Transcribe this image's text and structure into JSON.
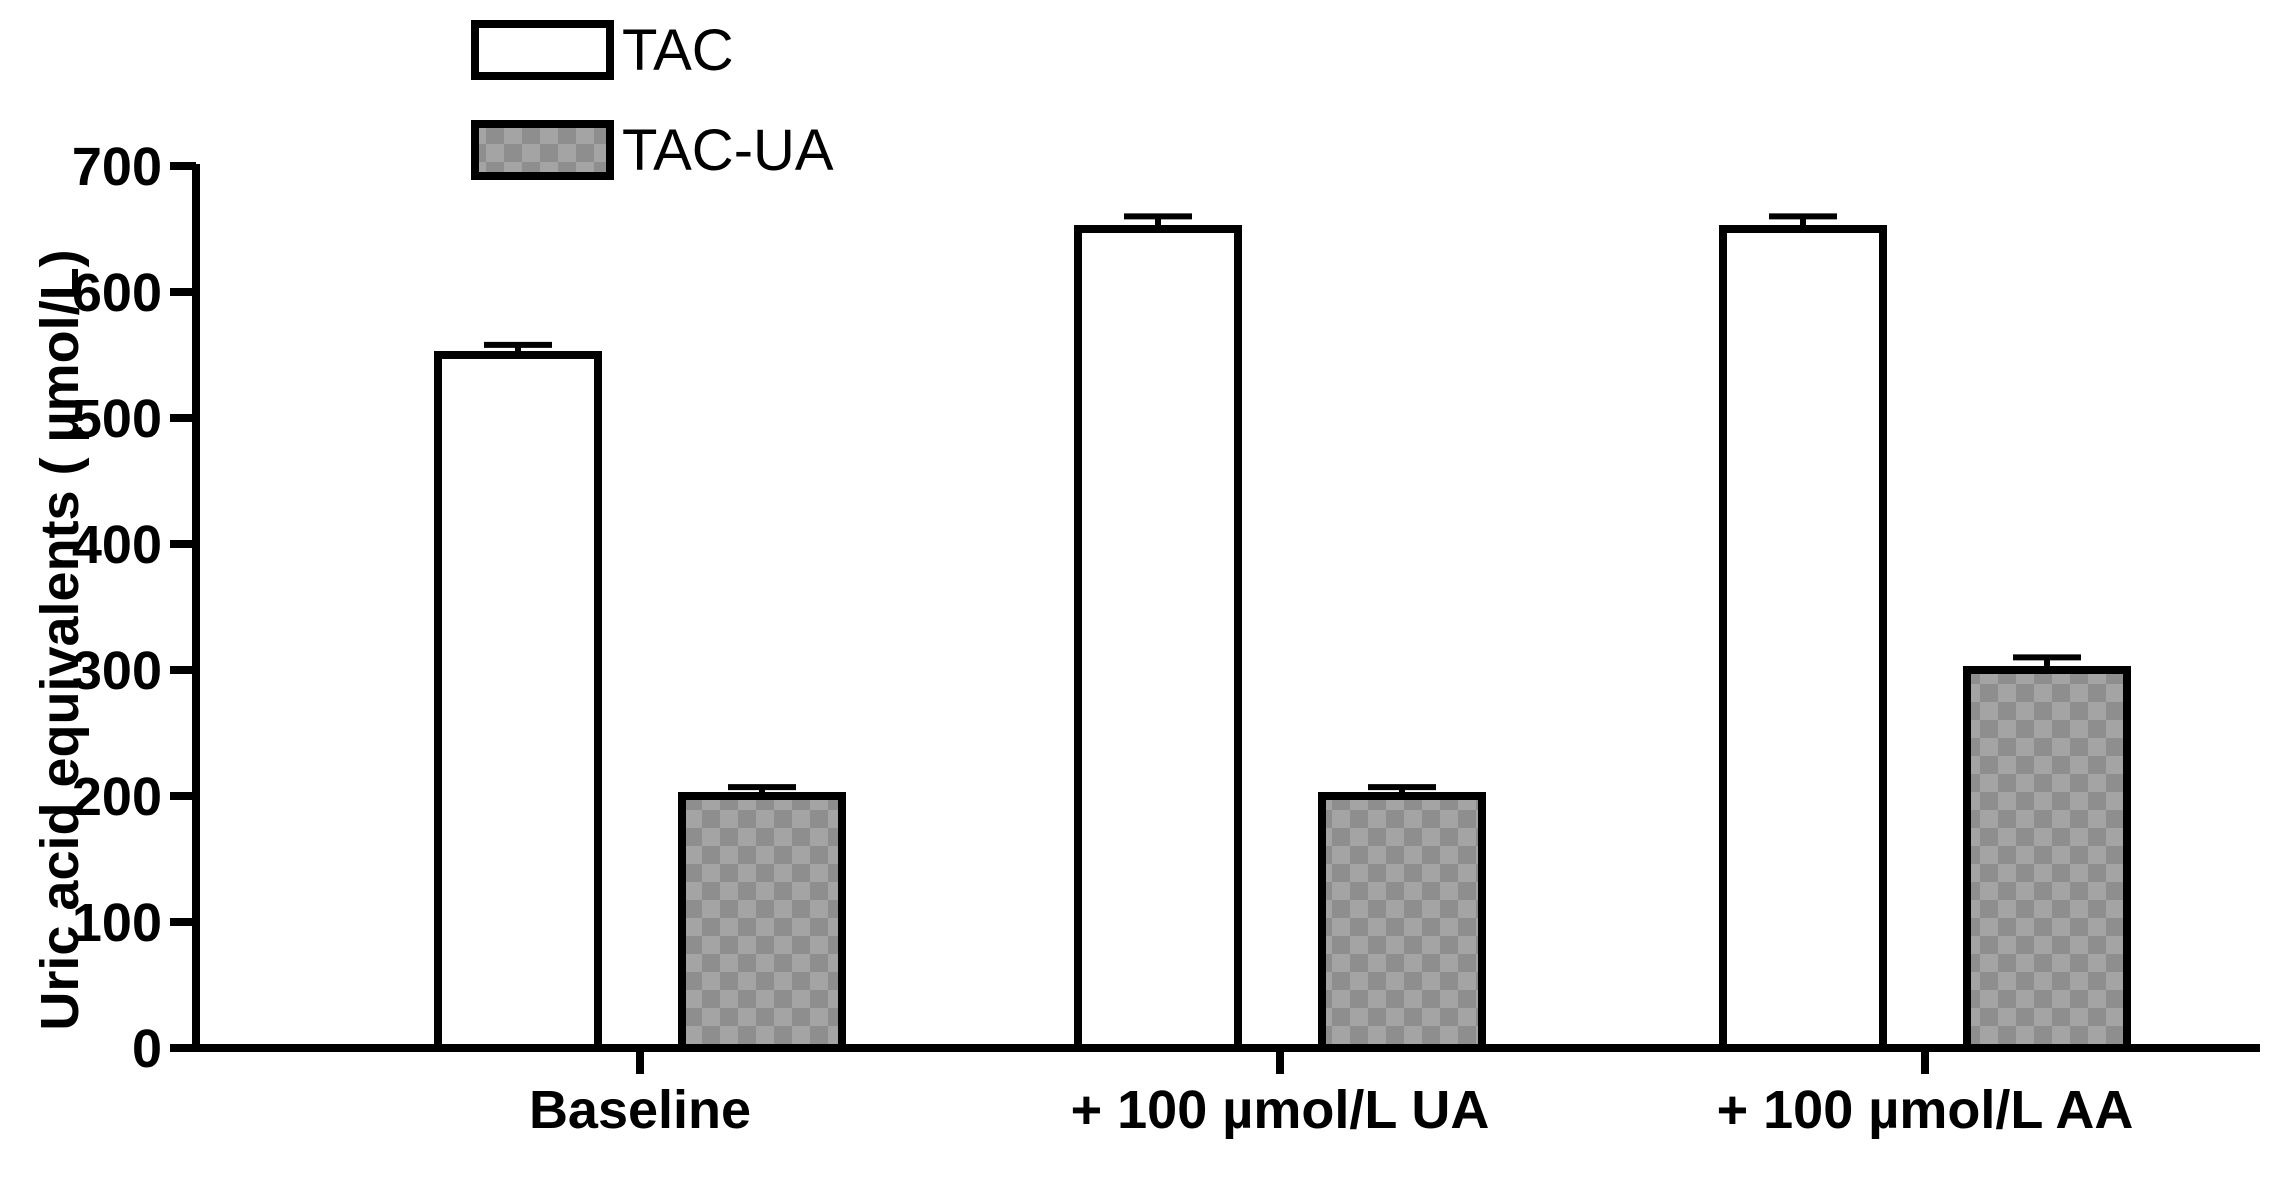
{
  "chart_data": {
    "type": "bar",
    "ylabel": "Uric acid equivalents ( µmol/L)",
    "xlabel": "",
    "categories": [
      "Baseline",
      "+ 100 µmol/L UA",
      "+ 100 µmol/L AA"
    ],
    "ylim": [
      0,
      700
    ],
    "yticks": [
      0,
      100,
      200,
      300,
      400,
      500,
      600,
      700
    ],
    "legend_position": "top-left",
    "grid": false,
    "series": [
      {
        "name": "TAC",
        "values": [
          550,
          650,
          650
        ],
        "errors": [
          8,
          10,
          10
        ],
        "fill": "#ffffff",
        "pattern": "none"
      },
      {
        "name": "TAC-UA",
        "values": [
          200,
          200,
          300
        ],
        "errors": [
          7,
          7,
          10
        ],
        "fill": "#9a9a9a",
        "pattern": "checker"
      }
    ]
  }
}
